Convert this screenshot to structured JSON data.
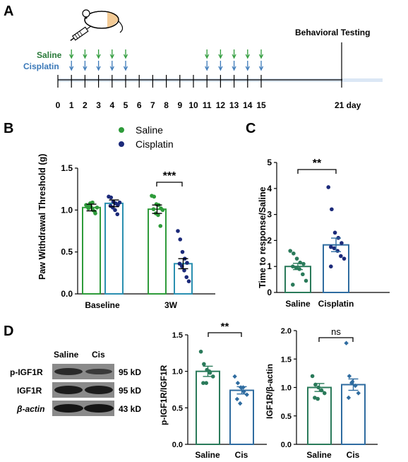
{
  "colors": {
    "saline": "#2e9b3a",
    "cisplatin": "#2a8fb0",
    "cisplatin_dot": "#1c2a7a",
    "saline_dark": "#2a7a5a",
    "cis_dark": "#2f6ca0",
    "timeline_band": "#dbe7f5"
  },
  "panelA": {
    "letter": "A",
    "saline_label": "Saline",
    "cisplatin_label": "Cisplatin",
    "days": [
      "0",
      "1",
      "2",
      "3",
      "4",
      "5",
      "6",
      "7",
      "8",
      "9",
      "10",
      "11",
      "12",
      "13",
      "14",
      "15"
    ],
    "injection_days": [
      1,
      2,
      3,
      4,
      5,
      11,
      12,
      13,
      14,
      15
    ],
    "final_day_label": "21 day",
    "testing_label": "Behavioral Testing",
    "icons": [
      "mouse-icon",
      "syringe-icon"
    ]
  },
  "panelB": {
    "letter": "B",
    "legend": [
      "Saline",
      "Cisplatin"
    ],
    "ylabel": "Paw Withdrawal Threshold (g)",
    "yticks": [
      "0.0",
      "0.5",
      "1.0",
      "1.5"
    ],
    "sig": "***",
    "chart_data": {
      "type": "bar",
      "categories": [
        "Baseline",
        "3W"
      ],
      "ylabel": "Paw Withdrawal Threshold (g)",
      "ylim": [
        0,
        1.5
      ],
      "series": [
        {
          "name": "Saline",
          "values": [
            1.03,
            1.01
          ],
          "points": [
            [
              1.06,
              1.02,
              1.04,
              1.0,
              0.96,
              1.05,
              1.08,
              1.09,
              0.98,
              1.03
            ],
            [
              1.17,
              1.16,
              1.07,
              1.06,
              1.02,
              1.01,
              0.96,
              0.94,
              0.81,
              1.0
            ]
          ]
        },
        {
          "name": "Cisplatin",
          "values": [
            1.08,
            0.36
          ],
          "points": [
            [
              1.16,
              1.15,
              1.1,
              1.08,
              1.06,
              1.05,
              1.03,
              1.0,
              0.95,
              1.09
            ],
            [
              0.75,
              0.65,
              0.5,
              0.42,
              0.37,
              0.36,
              0.33,
              0.28,
              0.2,
              0.15
            ]
          ]
        }
      ],
      "annotations": [
        "***"
      ]
    }
  },
  "panelC": {
    "letter": "C",
    "ylabel": "Time to response/Saline",
    "yticks": [
      "0",
      "1",
      "2",
      "3",
      "4",
      "5"
    ],
    "sig": "**",
    "chart_data": {
      "type": "bar",
      "categories": [
        "Saline",
        "Cisplatin"
      ],
      "ylabel": "Time to response/Saline",
      "ylim": [
        0,
        5
      ],
      "values": [
        1.0,
        1.83
      ],
      "points": [
        [
          1.6,
          1.5,
          1.3,
          1.15,
          1.1,
          1.0,
          0.95,
          0.9,
          0.7,
          0.45,
          0.3
        ],
        [
          4.05,
          3.2,
          2.3,
          2.1,
          1.9,
          1.75,
          1.7,
          1.6,
          1.4,
          1.3,
          1.0
        ]
      ],
      "annotations": [
        "**"
      ]
    }
  },
  "panelD": {
    "letter": "D",
    "blot": {
      "lanes": [
        "Saline",
        "Cis"
      ],
      "rows": [
        {
          "label": "p-IGF1R",
          "size": "95 kD"
        },
        {
          "label": "IGF1R",
          "size": "95 kD"
        },
        {
          "label": "β-actin",
          "size": "43 kD"
        }
      ]
    },
    "chart1": {
      "ylabel": "p-IGF1R/IGF1R",
      "yticks": [
        "0.0",
        "0.5",
        "1.0",
        "1.5"
      ],
      "sig": "**",
      "chart_data": {
        "type": "bar",
        "categories": [
          "Saline",
          "Cis"
        ],
        "ylabel": "p-IGF1R/IGF1R",
        "ylim": [
          0,
          1.5
        ],
        "values": [
          1.0,
          0.74
        ],
        "points": [
          [
            1.27,
            1.1,
            1.02,
            0.98,
            0.93,
            0.84,
            0.84,
            1.0
          ],
          [
            0.93,
            0.84,
            0.78,
            0.72,
            0.68,
            0.62,
            0.56,
            0.78
          ]
        ],
        "annotations": [
          "**"
        ]
      }
    },
    "chart2": {
      "ylabel": "IGF1R/β-actin",
      "yticks": [
        "0.0",
        "0.5",
        "1.0",
        "1.5",
        "2.0"
      ],
      "sig": "ns",
      "chart_data": {
        "type": "bar",
        "categories": [
          "Saline",
          "Cis"
        ],
        "ylabel": "IGF1R/β-actin",
        "ylim": [
          0,
          2.0
        ],
        "values": [
          1.0,
          1.05
        ],
        "points": [
          [
            1.2,
            1.05,
            1.0,
            0.95,
            0.9,
            0.82,
            0.8
          ],
          [
            1.78,
            1.2,
            1.1,
            1.03,
            0.9,
            0.82,
            1.08
          ]
        ],
        "annotations": [
          "ns"
        ]
      }
    }
  }
}
